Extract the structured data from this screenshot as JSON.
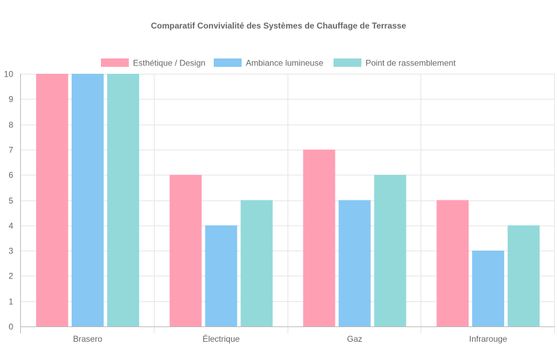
{
  "chart_data": {
    "type": "bar",
    "title": "Comparatif Convivialité des Systèmes de Chauffage de Terrasse",
    "categories": [
      "Brasero",
      "Électrique",
      "Gaz",
      "Infrarouge"
    ],
    "series": [
      {
        "name": "Esthétique / Design",
        "values": [
          10,
          6,
          7,
          5
        ],
        "color": "#FF9FB4"
      },
      {
        "name": "Ambiance lumineuse",
        "values": [
          10,
          4,
          5,
          3
        ],
        "color": "#86C7F3"
      },
      {
        "name": "Point de rassemblement",
        "values": [
          10,
          5,
          6,
          4
        ],
        "color": "#93D9D9"
      }
    ],
    "ylim": [
      0,
      10
    ],
    "yticks": [
      0,
      1,
      2,
      3,
      4,
      5,
      6,
      7,
      8,
      9,
      10
    ],
    "xlabel": "",
    "ylabel": "",
    "grid": true,
    "legend": "top"
  }
}
